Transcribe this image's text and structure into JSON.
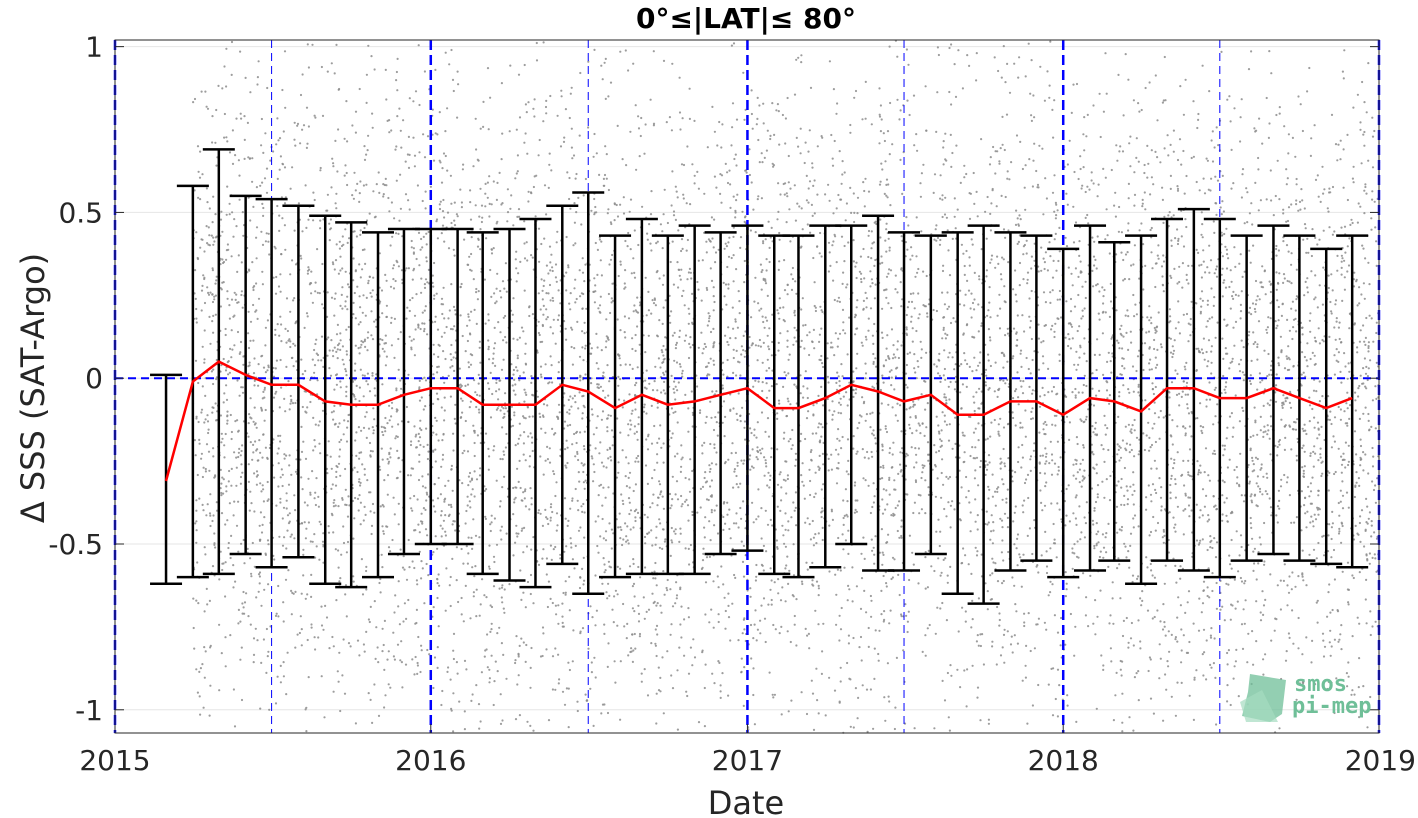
{
  "chart_data": {
    "type": "scatter",
    "title": "0°≤|LAT|≤ 80°",
    "xlabel": "Date",
    "ylabel": "Δ SSS (SAT-Argo)",
    "xlim": [
      "2015-01-01",
      "2019-01-01"
    ],
    "ylim": [
      -1.07,
      1.02
    ],
    "x_ticks": [
      "2015",
      "2016",
      "2017",
      "2018",
      "2019"
    ],
    "y_ticks": [
      "1",
      "0.5",
      "0",
      "-0.5",
      "-1"
    ],
    "grid": true,
    "scatter": {
      "name": "",
      "color": "#8c8c8c",
      "x_range": [
        "2015-04-01",
        "2019-01-01"
      ],
      "y_center": -0.05,
      "y_spread": 0.5
    },
    "monthly": {
      "x": [
        "2015-03-01",
        "2015-04-01",
        "2015-05-01",
        "2015-06-01",
        "2015-07-01",
        "2015-08-01",
        "2015-09-01",
        "2015-10-01",
        "2015-11-01",
        "2015-12-01",
        "2016-01-01",
        "2016-02-01",
        "2016-03-01",
        "2016-04-01",
        "2016-05-01",
        "2016-06-01",
        "2016-07-01",
        "2016-08-01",
        "2016-09-01",
        "2016-10-01",
        "2016-11-01",
        "2016-12-01",
        "2017-01-01",
        "2017-02-01",
        "2017-03-01",
        "2017-04-01",
        "2017-05-01",
        "2017-06-01",
        "2017-07-01",
        "2017-08-01",
        "2017-09-01",
        "2017-10-01",
        "2017-11-01",
        "2017-12-01",
        "2018-01-01",
        "2018-02-01",
        "2018-03-01",
        "2018-04-01",
        "2018-05-01",
        "2018-06-01",
        "2018-07-01",
        "2018-08-01",
        "2018-09-01",
        "2018-10-01",
        "2018-11-01",
        "2018-12-01"
      ],
      "mean": [
        -0.31,
        -0.01,
        0.05,
        0.01,
        -0.02,
        -0.02,
        -0.07,
        -0.08,
        -0.08,
        -0.05,
        -0.03,
        -0.03,
        -0.08,
        -0.08,
        -0.08,
        -0.02,
        -0.04,
        -0.09,
        -0.05,
        -0.08,
        -0.07,
        -0.05,
        -0.03,
        -0.09,
        -0.09,
        -0.06,
        -0.02,
        -0.04,
        -0.07,
        -0.05,
        -0.11,
        -0.11,
        -0.07,
        -0.07,
        -0.11,
        -0.06,
        -0.07,
        -0.1,
        -0.03,
        -0.03,
        -0.06,
        -0.06,
        -0.03,
        -0.06,
        -0.09,
        -0.06
      ],
      "upper": [
        0.01,
        0.58,
        0.69,
        0.55,
        0.54,
        0.52,
        0.49,
        0.47,
        0.44,
        0.45,
        0.45,
        0.45,
        0.44,
        0.45,
        0.48,
        0.52,
        0.56,
        0.43,
        0.48,
        0.43,
        0.46,
        0.44,
        0.46,
        0.43,
        0.43,
        0.46,
        0.46,
        0.49,
        0.44,
        0.43,
        0.44,
        0.46,
        0.44,
        0.43,
        0.39,
        0.46,
        0.41,
        0.43,
        0.48,
        0.51,
        0.48,
        0.43,
        0.46,
        0.43,
        0.39,
        0.43
      ],
      "lower": [
        -0.62,
        -0.6,
        -0.59,
        -0.53,
        -0.57,
        -0.54,
        -0.62,
        -0.63,
        -0.6,
        -0.53,
        -0.5,
        -0.5,
        -0.59,
        -0.61,
        -0.63,
        -0.56,
        -0.65,
        -0.6,
        -0.59,
        -0.59,
        -0.59,
        -0.53,
        -0.52,
        -0.59,
        -0.6,
        -0.57,
        -0.5,
        -0.58,
        -0.58,
        -0.53,
        -0.65,
        -0.68,
        -0.58,
        -0.55,
        -0.6,
        -0.58,
        -0.55,
        -0.62,
        -0.55,
        -0.58,
        -0.6,
        -0.55,
        -0.53,
        -0.55,
        -0.56,
        -0.57
      ],
      "mean_color": "#ff0000",
      "bar_color": "#000000"
    },
    "reference_lines": {
      "zero_line": 0,
      "year_lines": [
        "2015-01-01",
        "2016-01-01",
        "2017-01-01",
        "2018-01-01",
        "2019-01-01"
      ],
      "half_year_lines": [
        "2015-07-01",
        "2016-07-01",
        "2017-07-01",
        "2018-07-01"
      ],
      "color": "#0000ff"
    },
    "watermark": {
      "line1": "smos",
      "line2": "pi-mep",
      "color": "#6fbf98"
    }
  }
}
